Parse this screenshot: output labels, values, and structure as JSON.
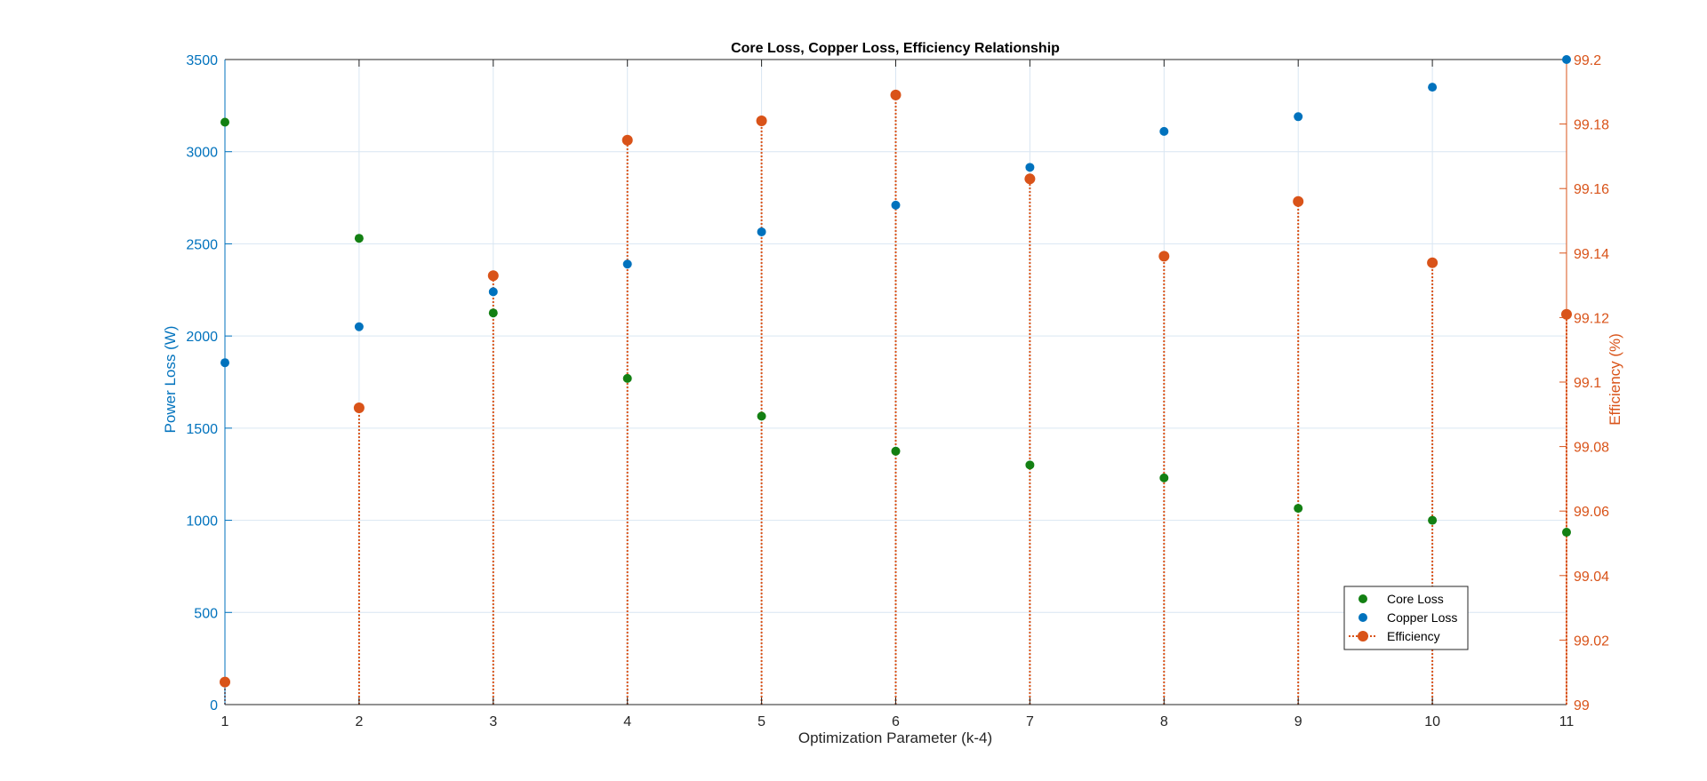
{
  "chart_data": {
    "type": "scatter",
    "title": "Core Loss, Copper Loss, Efficiency Relationship",
    "xlabel": "Optimization Parameter (k-4)",
    "ylabel_left": "Power Loss (W)",
    "ylabel_right": "Efficiency (%)",
    "x": [
      1,
      2,
      3,
      4,
      5,
      6,
      7,
      8,
      9,
      10,
      11
    ],
    "xlim": [
      1,
      11
    ],
    "ylim_left": [
      0,
      3500
    ],
    "ylim_right": [
      99,
      99.2
    ],
    "xticks": [
      "1",
      "2",
      "3",
      "4",
      "5",
      "6",
      "7",
      "8",
      "9",
      "10",
      "11"
    ],
    "yticks_left": [
      "0",
      "500",
      "1000",
      "1500",
      "2000",
      "2500",
      "3000",
      "3500"
    ],
    "yticks_right": [
      "99",
      "99.02",
      "99.04",
      "99.06",
      "99.08",
      "99.1",
      "99.12",
      "99.14",
      "99.16",
      "99.18",
      "99.2"
    ],
    "grid": true,
    "legend_position": "bottom-right",
    "series": [
      {
        "name": "Core Loss",
        "axis": "left",
        "style": "markers",
        "color": "#138013",
        "values": [
          3160,
          2530,
          2125,
          1770,
          1565,
          1375,
          1300,
          1230,
          1065,
          1000,
          935
        ]
      },
      {
        "name": "Copper Loss",
        "axis": "left",
        "style": "markers",
        "color": "#0072BD",
        "values": [
          1855,
          2050,
          2240,
          2390,
          2565,
          2710,
          2915,
          3110,
          3190,
          3350,
          3500
        ]
      },
      {
        "name": "Efficiency",
        "axis": "right",
        "style": "stem",
        "color": "#D95319",
        "values": [
          99.007,
          99.092,
          99.133,
          99.175,
          99.181,
          99.189,
          99.163,
          99.139,
          99.156,
          99.137,
          99.121
        ]
      }
    ],
    "colors": {
      "left_axis": "#0072BD",
      "right_axis": "#D95319",
      "grid": "#d9e6f2",
      "frame": "#262626"
    }
  }
}
